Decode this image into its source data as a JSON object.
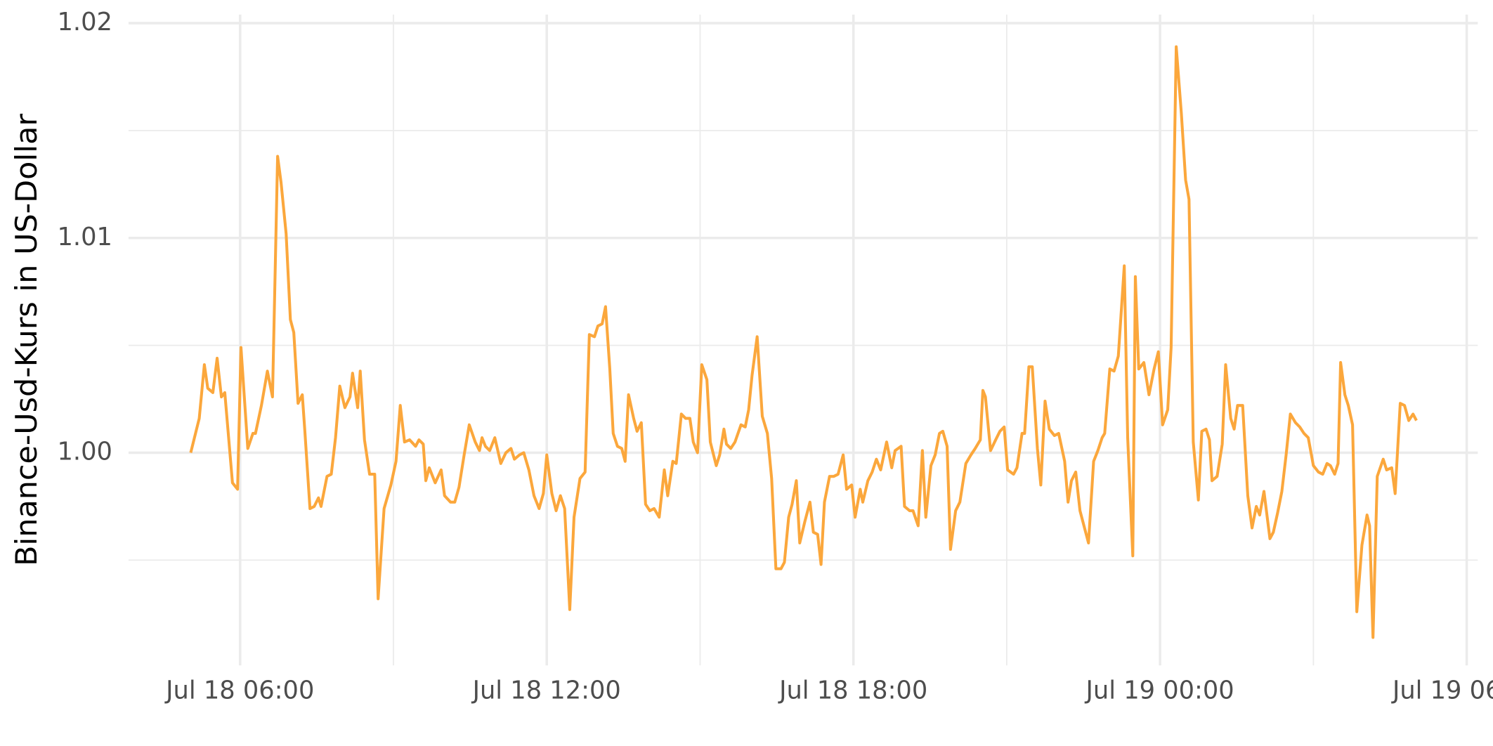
{
  "chart_data": {
    "type": "line",
    "y_label": "Binance-Usd-Kurs in US-Dollar",
    "color": "#fba73c",
    "grid": true,
    "xlim": [
      229,
      1813
    ],
    "xticks": [
      {
        "value": 360,
        "label": "Jul 18 06:00"
      },
      {
        "value": 720,
        "label": "Jul 18 12:00"
      },
      {
        "value": 1080,
        "label": "Jul 18 18:00"
      },
      {
        "value": 1440,
        "label": "Jul 19 00:00"
      },
      {
        "value": 1800,
        "label": "Jul 19 06:00"
      }
    ],
    "xminor": [
      540,
      900,
      1260,
      1620
    ],
    "ylim": [
      0.9901,
      1.0204
    ],
    "yticks": [
      {
        "value": 1.0,
        "label": "1.00"
      },
      1.01,
      1.02
    ],
    "yminor": [
      0.995,
      1.005,
      1.015
    ],
    "x": [
      302,
      312,
      318,
      322,
      328,
      333,
      338,
      342,
      351,
      357,
      361,
      369,
      375,
      378,
      385,
      392,
      398,
      404,
      408,
      414,
      419,
      423,
      428,
      433,
      436,
      442,
      447,
      452,
      455,
      462,
      467,
      472,
      477,
      483,
      489,
      492,
      498,
      501,
      506,
      512,
      518,
      522,
      529,
      537,
      543,
      548,
      553,
      559,
      566,
      570,
      575,
      578,
      582,
      589,
      596,
      600,
      607,
      612,
      617,
      623,
      629,
      636,
      641,
      644,
      648,
      653,
      659,
      666,
      672,
      678,
      682,
      688,
      693,
      699,
      705,
      711,
      716,
      720,
      726,
      731,
      736,
      741,
      747,
      752,
      759,
      765,
      770,
      776,
      780,
      785,
      789,
      794,
      798,
      803,
      808,
      812,
      816,
      822,
      826,
      831,
      836,
      841,
      846,
      852,
      858,
      862,
      868,
      872,
      878,
      883,
      888,
      892,
      897,
      902,
      908,
      912,
      919,
      923,
      928,
      931,
      936,
      941,
      948,
      953,
      957,
      961,
      967,
      973,
      979,
      984,
      989,
      995,
      999,
      1004,
      1008,
      1013,
      1017,
      1023,
      1029,
      1033,
      1038,
      1042,
      1046,
      1052,
      1057,
      1062,
      1068,
      1072,
      1078,
      1082,
      1088,
      1091,
      1097,
      1102,
      1107,
      1112,
      1119,
      1125,
      1129,
      1136,
      1140,
      1146,
      1150,
      1156,
      1161,
      1165,
      1171,
      1176,
      1181,
      1185,
      1190,
      1194,
      1200,
      1205,
      1212,
      1218,
      1223,
      1229,
      1232,
      1235,
      1241,
      1247,
      1252,
      1257,
      1261,
      1268,
      1272,
      1278,
      1281,
      1286,
      1290,
      1296,
      1300,
      1305,
      1310,
      1316,
      1321,
      1328,
      1332,
      1336,
      1341,
      1346,
      1352,
      1356,
      1362,
      1367,
      1372,
      1375,
      1381,
      1386,
      1391,
      1398,
      1402,
      1408,
      1411,
      1415,
      1421,
      1427,
      1433,
      1438,
      1443,
      1449,
      1453,
      1459,
      1465,
      1470,
      1474,
      1479,
      1485,
      1489,
      1494,
      1498,
      1501,
      1507,
      1513,
      1517,
      1523,
      1527,
      1531,
      1537,
      1543,
      1548,
      1553,
      1557,
      1562,
      1569,
      1573,
      1578,
      1583,
      1588,
      1593,
      1599,
      1604,
      1609,
      1614,
      1620,
      1626,
      1631,
      1636,
      1640,
      1645,
      1649,
      1652,
      1657,
      1661,
      1666,
      1671,
      1677,
      1683,
      1686,
      1690,
      1695,
      1702,
      1706,
      1712,
      1716,
      1722,
      1727,
      1732,
      1737,
      1741
    ],
    "values": [
      1.0,
      1.0016,
      1.0041,
      1.003,
      1.0028,
      1.0044,
      1.0026,
      1.0028,
      0.9986,
      0.9983,
      1.0049,
      1.0002,
      1.0009,
      1.0009,
      1.0022,
      1.0038,
      1.0026,
      1.0138,
      1.0126,
      1.0102,
      1.0062,
      1.0056,
      1.0023,
      1.0027,
      1.001,
      0.9974,
      0.9975,
      0.9979,
      0.9975,
      0.9989,
      0.999,
      1.0007,
      1.0031,
      1.0021,
      1.0026,
      1.0037,
      1.0021,
      1.0038,
      1.0006,
      0.999,
      0.999,
      0.9932,
      0.9974,
      0.9985,
      0.9996,
      1.0022,
      1.0005,
      1.0006,
      1.0003,
      1.0006,
      1.0004,
      0.9987,
      0.9993,
      0.9986,
      0.9992,
      0.998,
      0.9977,
      0.9977,
      0.9984,
      0.9999,
      1.0013,
      1.0005,
      1.0001,
      1.0007,
      1.0003,
      1.0001,
      1.0007,
      0.9995,
      1.0,
      1.0002,
      0.9997,
      0.9999,
      1.0,
      0.9992,
      0.998,
      0.9974,
      0.9981,
      0.9999,
      0.9981,
      0.9973,
      0.998,
      0.9974,
      0.9927,
      0.997,
      0.9988,
      0.9991,
      1.0055,
      1.0054,
      1.0059,
      1.006,
      1.0068,
      1.0039,
      1.0009,
      1.0003,
      1.0002,
      0.9996,
      1.0027,
      1.0016,
      1.001,
      1.0014,
      0.9976,
      0.9973,
      0.9974,
      0.997,
      0.9992,
      0.998,
      0.9996,
      0.9995,
      1.0018,
      1.0016,
      1.0016,
      1.0005,
      1.0,
      1.0041,
      1.0034,
      1.0005,
      0.9994,
      0.9999,
      1.0011,
      1.0004,
      1.0002,
      1.0005,
      1.0013,
      1.0012,
      1.002,
      1.0036,
      1.0054,
      1.0017,
      1.0009,
      0.9988,
      0.9946,
      0.9946,
      0.9949,
      0.997,
      0.9976,
      0.9987,
      0.9958,
      0.9968,
      0.9977,
      0.9963,
      0.9962,
      0.9948,
      0.9977,
      0.9989,
      0.9989,
      0.999,
      0.9999,
      0.9983,
      0.9985,
      0.997,
      0.9983,
      0.9977,
      0.9987,
      0.9991,
      0.9997,
      0.9992,
      1.0005,
      0.9993,
      1.0001,
      1.0003,
      0.9975,
      0.9973,
      0.9973,
      0.9966,
      1.0001,
      0.997,
      0.9994,
      0.9999,
      1.0009,
      1.001,
      1.0003,
      0.9955,
      0.9973,
      0.9977,
      0.9995,
      0.9999,
      1.0002,
      1.0006,
      1.0029,
      1.0026,
      1.0001,
      1.0006,
      1.001,
      1.0012,
      0.9992,
      0.999,
      0.9993,
      1.0009,
      1.0009,
      1.004,
      1.004,
      1.0002,
      0.9985,
      1.0024,
      1.0011,
      1.0008,
      1.0009,
      0.9996,
      0.9977,
      0.9987,
      0.9991,
      0.9973,
      0.9964,
      0.9958,
      0.9996,
      1.0001,
      1.0007,
      1.0009,
      1.0039,
      1.0038,
      1.0045,
      1.0087,
      1.0007,
      0.9952,
      1.0082,
      1.0039,
      1.0042,
      1.0027,
      1.0039,
      1.0047,
      1.0013,
      1.002,
      1.0049,
      1.0189,
      1.0158,
      1.0127,
      1.0118,
      1.0005,
      0.9978,
      1.001,
      1.0011,
      1.0006,
      0.9987,
      0.9989,
      1.0004,
      1.0041,
      1.0016,
      1.0011,
      1.0022,
      1.0022,
      0.998,
      0.9965,
      0.9975,
      0.9971,
      0.9982,
      0.996,
      0.9963,
      0.9972,
      0.9982,
      0.9999,
      1.0018,
      1.0014,
      1.0012,
      1.0009,
      1.0007,
      0.9994,
      0.9991,
      0.999,
      0.9995,
      0.9994,
      0.999,
      0.9995,
      1.0042,
      1.0027,
      1.0022,
      1.0013,
      0.9926,
      0.9957,
      0.9971,
      0.9966,
      0.9914,
      0.9989,
      0.9997,
      0.9992,
      0.9993,
      0.9981,
      1.0023,
      1.0022,
      1.0015,
      1.0018,
      1.0015
    ]
  }
}
